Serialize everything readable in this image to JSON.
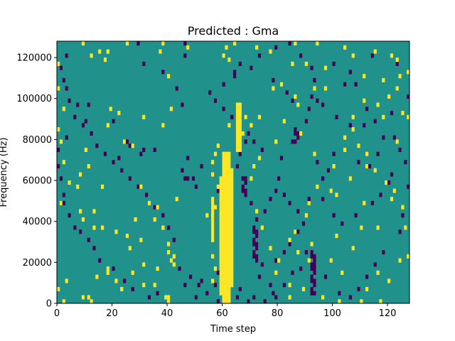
{
  "chart_data": {
    "type": "heatmap",
    "title": "Predicted : Gma",
    "xlabel": "Time step",
    "ylabel": "Frequency (Hz)",
    "xlim": [
      0,
      128
    ],
    "ylim": [
      0,
      128000
    ],
    "x_ticks": [
      0,
      20,
      40,
      60,
      80,
      100,
      120
    ],
    "x_tick_labels": [
      "0",
      "20",
      "40",
      "60",
      "80",
      "100",
      "120"
    ],
    "y_ticks": [
      0,
      20000,
      40000,
      60000,
      80000,
      100000,
      120000
    ],
    "y_tick_labels": [
      "0",
      "20000",
      "40000",
      "60000",
      "80000",
      "100000",
      "120000"
    ],
    "rows": 64,
    "cols": 128,
    "colormap": {
      "low": "#440154",
      "mid": "#21918c",
      "high": "#fde725"
    },
    "default_level": "mid",
    "grid": false,
    "legend": "none",
    "high_cells": [
      [
        9,
        63
      ],
      [
        12,
        60
      ],
      [
        15,
        61
      ],
      [
        17,
        59
      ],
      [
        18,
        61
      ],
      [
        25,
        63
      ],
      [
        0,
        58
      ],
      [
        38,
        63
      ],
      [
        37,
        61
      ],
      [
        61,
        62
      ],
      [
        60,
        60
      ],
      [
        62,
        59
      ],
      [
        47,
        62
      ],
      [
        40,
        55
      ],
      [
        0,
        52
      ],
      [
        2,
        47
      ],
      [
        0,
        42
      ],
      [
        19,
        47
      ],
      [
        22,
        46
      ],
      [
        18,
        43
      ],
      [
        24,
        39
      ],
      [
        31,
        45
      ],
      [
        38,
        43
      ],
      [
        41,
        47
      ],
      [
        1,
        39
      ],
      [
        27,
        38
      ],
      [
        10,
        37
      ],
      [
        2,
        34
      ],
      [
        8,
        31
      ],
      [
        11,
        33
      ],
      [
        4,
        29
      ],
      [
        1,
        24
      ],
      [
        7,
        28
      ],
      [
        16,
        28
      ],
      [
        30,
        28
      ],
      [
        8,
        22
      ],
      [
        33,
        24
      ],
      [
        43,
        25
      ],
      [
        9,
        20
      ],
      [
        13,
        22
      ],
      [
        13,
        18
      ],
      [
        16,
        18
      ],
      [
        21,
        17
      ],
      [
        28,
        20
      ],
      [
        36,
        23
      ],
      [
        35,
        20
      ],
      [
        38,
        18
      ],
      [
        25,
        16
      ],
      [
        26,
        13
      ],
      [
        30,
        15
      ],
      [
        40,
        14
      ],
      [
        40,
        12
      ],
      [
        41,
        10
      ],
      [
        42,
        11
      ],
      [
        42,
        9
      ],
      [
        31,
        9
      ],
      [
        36,
        8
      ],
      [
        39,
        1
      ],
      [
        40,
        1
      ],
      [
        40,
        0
      ],
      [
        11,
        1
      ],
      [
        12,
        0
      ],
      [
        9,
        1
      ],
      [
        2,
        0
      ],
      [
        0,
        3
      ],
      [
        3,
        5
      ],
      [
        14,
        6
      ],
      [
        18,
        7
      ],
      [
        18,
        8
      ],
      [
        21,
        5
      ],
      [
        23,
        3
      ],
      [
        27,
        7
      ],
      [
        31,
        4
      ],
      [
        35,
        4
      ],
      [
        56,
        5
      ],
      [
        56,
        11
      ],
      [
        57,
        8
      ],
      [
        54,
        21
      ],
      [
        57,
        23
      ],
      [
        59,
        25
      ],
      [
        58,
        28
      ],
      [
        56,
        31
      ],
      [
        60,
        29
      ],
      [
        56,
        34
      ],
      [
        57,
        36
      ],
      [
        58,
        38
      ],
      [
        62,
        43
      ],
      [
        67,
        41
      ],
      [
        68,
        45
      ],
      [
        73,
        45
      ],
      [
        70,
        43
      ],
      [
        71,
        33
      ],
      [
        73,
        35
      ],
      [
        70,
        30
      ],
      [
        72,
        22
      ],
      [
        74,
        18
      ],
      [
        77,
        13
      ],
      [
        80,
        10
      ],
      [
        79,
        7
      ],
      [
        84,
        4
      ],
      [
        84,
        1
      ],
      [
        89,
        3
      ],
      [
        92,
        2
      ],
      [
        87,
        12
      ],
      [
        84,
        15
      ],
      [
        86,
        17
      ],
      [
        90,
        21
      ],
      [
        91,
        24
      ],
      [
        94,
        28
      ],
      [
        99,
        27
      ],
      [
        101,
        26
      ],
      [
        100,
        33
      ],
      [
        106,
        30
      ],
      [
        104,
        37
      ],
      [
        104,
        40
      ],
      [
        109,
        38
      ],
      [
        112,
        33
      ],
      [
        112,
        36
      ],
      [
        107,
        42
      ],
      [
        107,
        45
      ],
      [
        111,
        49
      ],
      [
        116,
        48
      ],
      [
        118,
        45
      ],
      [
        120,
        50
      ],
      [
        118,
        54
      ],
      [
        123,
        52
      ],
      [
        125,
        46
      ],
      [
        127,
        45
      ],
      [
        123,
        39
      ],
      [
        115,
        32
      ],
      [
        119,
        29
      ],
      [
        121,
        25
      ],
      [
        126,
        18
      ],
      [
        127,
        11
      ],
      [
        124,
        10
      ],
      [
        116,
        7
      ],
      [
        120,
        5
      ],
      [
        112,
        3
      ],
      [
        117,
        0
      ],
      [
        110,
        0
      ],
      [
        102,
        0
      ],
      [
        96,
        1
      ],
      [
        103,
        7
      ],
      [
        99,
        10
      ],
      [
        91,
        10
      ],
      [
        92,
        14
      ],
      [
        101,
        16
      ],
      [
        107,
        13
      ],
      [
        110,
        18
      ],
      [
        116,
        18
      ],
      [
        111,
        24
      ],
      [
        125,
        23
      ],
      [
        122,
        27
      ],
      [
        93,
        36
      ],
      [
        88,
        41
      ],
      [
        79,
        39
      ],
      [
        82,
        44
      ],
      [
        87,
        48
      ],
      [
        86,
        50
      ],
      [
        93,
        52
      ],
      [
        97,
        52
      ],
      [
        97,
        57
      ],
      [
        90,
        58
      ],
      [
        85,
        58
      ],
      [
        81,
        53
      ],
      [
        78,
        52
      ],
      [
        77,
        61
      ],
      [
        72,
        62
      ],
      [
        64,
        63
      ],
      [
        86,
        63
      ],
      [
        94,
        63
      ],
      [
        104,
        62
      ],
      [
        107,
        60
      ],
      [
        115,
        61
      ],
      [
        121,
        60
      ],
      [
        123,
        59
      ],
      [
        127,
        56
      ],
      [
        124,
        55
      ],
      [
        111,
        55
      ]
    ],
    "low_cells": [
      [
        46,
        63
      ],
      [
        46,
        60
      ],
      [
        66,
        58
      ],
      [
        64,
        56
      ],
      [
        78,
        54
      ],
      [
        83,
        51
      ],
      [
        85,
        49
      ],
      [
        92,
        50
      ],
      [
        94,
        49
      ],
      [
        104,
        53
      ],
      [
        108,
        53
      ],
      [
        100,
        58
      ],
      [
        106,
        56
      ],
      [
        114,
        60
      ],
      [
        123,
        58
      ],
      [
        127,
        50
      ],
      [
        121,
        46
      ],
      [
        111,
        43
      ],
      [
        106,
        43
      ],
      [
        91,
        47
      ],
      [
        90,
        44
      ],
      [
        85,
        39
      ],
      [
        81,
        35
      ],
      [
        74,
        37
      ],
      [
        71,
        39
      ],
      [
        69,
        41
      ],
      [
        60,
        47
      ],
      [
        63,
        45
      ],
      [
        65,
        43
      ],
      [
        68,
        39
      ],
      [
        66,
        36
      ],
      [
        65,
        33
      ],
      [
        61,
        30
      ],
      [
        45,
        32
      ],
      [
        47,
        30
      ],
      [
        30,
        36
      ],
      [
        31,
        37
      ],
      [
        26,
        38
      ],
      [
        25,
        39
      ],
      [
        20,
        44
      ],
      [
        11,
        48
      ],
      [
        10,
        44
      ],
      [
        22,
        35
      ],
      [
        35,
        37
      ],
      [
        47,
        35
      ],
      [
        52,
        33
      ],
      [
        49,
        30
      ],
      [
        46,
        30
      ],
      [
        50,
        28
      ],
      [
        58,
        27
      ],
      [
        62,
        24
      ],
      [
        68,
        27
      ],
      [
        70,
        24
      ],
      [
        72,
        20
      ],
      [
        75,
        22
      ],
      [
        77,
        25
      ],
      [
        79,
        27
      ],
      [
        80,
        30
      ],
      [
        82,
        26
      ],
      [
        84,
        24
      ],
      [
        87,
        22
      ],
      [
        91,
        25
      ],
      [
        96,
        30
      ],
      [
        98,
        32
      ],
      [
        94,
        34
      ],
      [
        100,
        36
      ],
      [
        109,
        34
      ],
      [
        113,
        33
      ],
      [
        116,
        36
      ],
      [
        122,
        40
      ],
      [
        120,
        29
      ],
      [
        121,
        31
      ],
      [
        117,
        26
      ],
      [
        114,
        24
      ],
      [
        108,
        21
      ],
      [
        103,
        19
      ],
      [
        100,
        21
      ],
      [
        96,
        25
      ],
      [
        89,
        19
      ],
      [
        87,
        17
      ],
      [
        84,
        14
      ],
      [
        82,
        12
      ],
      [
        79,
        10
      ],
      [
        74,
        9
      ],
      [
        73,
        6
      ],
      [
        77,
        4
      ],
      [
        78,
        2
      ],
      [
        75,
        0
      ],
      [
        71,
        1
      ],
      [
        66,
        3
      ],
      [
        58,
        7
      ],
      [
        57,
        4
      ],
      [
        52,
        5
      ],
      [
        50,
        1
      ],
      [
        46,
        4
      ],
      [
        36,
        2
      ],
      [
        33,
        1
      ],
      [
        27,
        3
      ],
      [
        24,
        5
      ],
      [
        20,
        8
      ],
      [
        15,
        10
      ],
      [
        13,
        13
      ],
      [
        11,
        15
      ],
      [
        8,
        17
      ],
      [
        6,
        18
      ],
      [
        4,
        21
      ],
      [
        2,
        24
      ],
      [
        2,
        26
      ],
      [
        1,
        30
      ],
      [
        0,
        33
      ],
      [
        0,
        37
      ],
      [
        3,
        40
      ],
      [
        6,
        45
      ],
      [
        7,
        48
      ],
      [
        2,
        54
      ],
      [
        1,
        57
      ],
      [
        3,
        60
      ],
      [
        29,
        63
      ],
      [
        31,
        58
      ],
      [
        38,
        56
      ],
      [
        43,
        52
      ],
      [
        45,
        48
      ],
      [
        55,
        51
      ],
      [
        57,
        49
      ],
      [
        60,
        53
      ],
      [
        64,
        55
      ],
      [
        70,
        57
      ],
      [
        73,
        60
      ],
      [
        79,
        62
      ],
      [
        84,
        63
      ],
      [
        88,
        60
      ],
      [
        92,
        57
      ],
      [
        93,
        54
      ],
      [
        96,
        48
      ],
      [
        101,
        45
      ],
      [
        112,
        47
      ],
      [
        115,
        44
      ],
      [
        118,
        40
      ],
      [
        124,
        37
      ],
      [
        126,
        34
      ],
      [
        127,
        28
      ],
      [
        125,
        21
      ],
      [
        124,
        17
      ],
      [
        118,
        12
      ],
      [
        115,
        9
      ],
      [
        112,
        6
      ],
      [
        109,
        3
      ],
      [
        106,
        1
      ],
      [
        102,
        2
      ],
      [
        97,
        6
      ],
      [
        93,
        9
      ],
      [
        90,
        12
      ],
      [
        88,
        8
      ],
      [
        85,
        7
      ],
      [
        82,
        4
      ],
      [
        79,
        1
      ],
      [
        69,
        0
      ],
      [
        65,
        1
      ],
      [
        62,
        2
      ],
      [
        58,
        0
      ],
      [
        54,
        2
      ],
      [
        51,
        4
      ],
      [
        48,
        6
      ],
      [
        44,
        8
      ],
      [
        42,
        15
      ],
      [
        40,
        18
      ],
      [
        38,
        21
      ],
      [
        35,
        23
      ],
      [
        32,
        26
      ],
      [
        29,
        28
      ],
      [
        26,
        30
      ],
      [
        23,
        32
      ],
      [
        20,
        34
      ],
      [
        17,
        36
      ],
      [
        14,
        38
      ],
      [
        12,
        41
      ],
      [
        9,
        43
      ],
      [
        6,
        45
      ],
      [
        4,
        49
      ],
      [
        3,
        52
      ]
    ],
    "high_bands": [
      {
        "x": [
          60,
          63
        ],
        "y_rows": [
          0,
          36
        ]
      },
      {
        "x": [
          59,
          60
        ],
        "y_rows": [
          2,
          30
        ]
      },
      {
        "x": [
          63,
          64
        ],
        "y_rows": [
          4,
          32
        ]
      },
      {
        "x": [
          56,
          57
        ],
        "y_rows": [
          15,
          25
        ]
      },
      {
        "x": [
          65,
          67
        ],
        "y_rows": [
          37,
          48
        ]
      }
    ],
    "low_bands": [
      {
        "x": [
          71,
          73
        ],
        "y_rows": [
          10,
          18
        ]
      },
      {
        "x": [
          67,
          69
        ],
        "y_rows": [
          26,
          30
        ]
      },
      {
        "x": [
          86,
          88
        ],
        "y_rows": [
          39,
          42
        ]
      },
      {
        "x": [
          92,
          94
        ],
        "y_rows": [
          2,
          12
        ]
      }
    ]
  }
}
